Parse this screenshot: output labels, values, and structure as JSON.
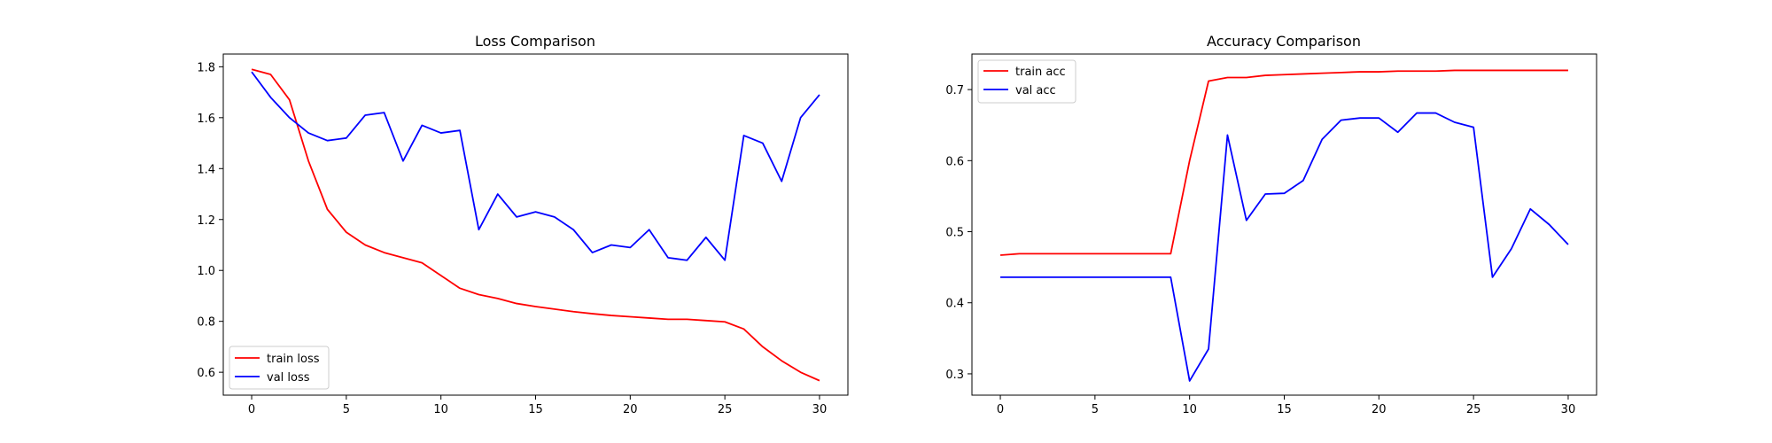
{
  "chart_data": [
    {
      "type": "line",
      "title": "Loss Comparison",
      "xlabel": "",
      "ylabel": "",
      "xlim": [
        -1.5,
        31.5
      ],
      "ylim": [
        0.51,
        1.85
      ],
      "xticks": [
        0,
        5,
        10,
        15,
        20,
        25,
        30
      ],
      "yticks": [
        0.6,
        0.8,
        1.0,
        1.2,
        1.4,
        1.6,
        1.8
      ],
      "ytick_decimals": 1,
      "grid": false,
      "legend": "lower-left",
      "x": [
        0,
        1,
        2,
        3,
        4,
        5,
        6,
        7,
        8,
        9,
        10,
        11,
        12,
        13,
        14,
        15,
        16,
        17,
        18,
        19,
        20,
        21,
        22,
        23,
        24,
        25,
        26,
        27,
        28,
        29,
        30
      ],
      "series": [
        {
          "name": "train loss",
          "color": "#ff0000",
          "values": [
            1.79,
            1.77,
            1.67,
            1.43,
            1.24,
            1.15,
            1.1,
            1.07,
            1.05,
            1.03,
            0.98,
            0.93,
            0.905,
            0.89,
            0.87,
            0.858,
            0.848,
            0.838,
            0.83,
            0.823,
            0.818,
            0.813,
            0.808,
            0.808,
            0.803,
            0.798,
            0.77,
            0.7,
            0.645,
            0.6,
            0.567
          ]
        },
        {
          "name": "val loss",
          "color": "#0000ff",
          "values": [
            1.78,
            1.68,
            1.6,
            1.54,
            1.51,
            1.52,
            1.61,
            1.62,
            1.43,
            1.57,
            1.54,
            1.55,
            1.16,
            1.3,
            1.21,
            1.23,
            1.21,
            1.16,
            1.07,
            1.1,
            1.09,
            1.16,
            1.05,
            1.04,
            1.13,
            1.04,
            1.53,
            1.5,
            1.35,
            1.6,
            1.69
          ]
        }
      ]
    },
    {
      "type": "line",
      "title": "Accuracy Comparison",
      "xlabel": "",
      "ylabel": "",
      "xlim": [
        -1.5,
        31.5
      ],
      "ylim": [
        0.27,
        0.75
      ],
      "xticks": [
        0,
        5,
        10,
        15,
        20,
        25,
        30
      ],
      "yticks": [
        0.3,
        0.4,
        0.5,
        0.6,
        0.7
      ],
      "ytick_decimals": 1,
      "grid": false,
      "legend": "upper-left",
      "x": [
        0,
        1,
        2,
        3,
        4,
        5,
        6,
        7,
        8,
        9,
        10,
        11,
        12,
        13,
        14,
        15,
        16,
        17,
        18,
        19,
        20,
        21,
        22,
        23,
        24,
        25,
        26,
        27,
        28,
        29,
        30
      ],
      "series": [
        {
          "name": "train acc",
          "color": "#ff0000",
          "values": [
            0.467,
            0.469,
            0.469,
            0.469,
            0.469,
            0.469,
            0.469,
            0.469,
            0.469,
            0.469,
            0.6,
            0.712,
            0.717,
            0.717,
            0.72,
            0.721,
            0.722,
            0.723,
            0.724,
            0.725,
            0.725,
            0.726,
            0.726,
            0.726,
            0.727,
            0.727,
            0.727,
            0.727,
            0.727,
            0.727,
            0.727
          ]
        },
        {
          "name": "val acc",
          "color": "#0000ff",
          "values": [
            0.436,
            0.436,
            0.436,
            0.436,
            0.436,
            0.436,
            0.436,
            0.436,
            0.436,
            0.436,
            0.29,
            0.335,
            0.636,
            0.516,
            0.553,
            0.554,
            0.572,
            0.63,
            0.657,
            0.66,
            0.66,
            0.64,
            0.667,
            0.667,
            0.654,
            0.647,
            0.436,
            0.476,
            0.532,
            0.51,
            0.482
          ]
        }
      ]
    }
  ]
}
